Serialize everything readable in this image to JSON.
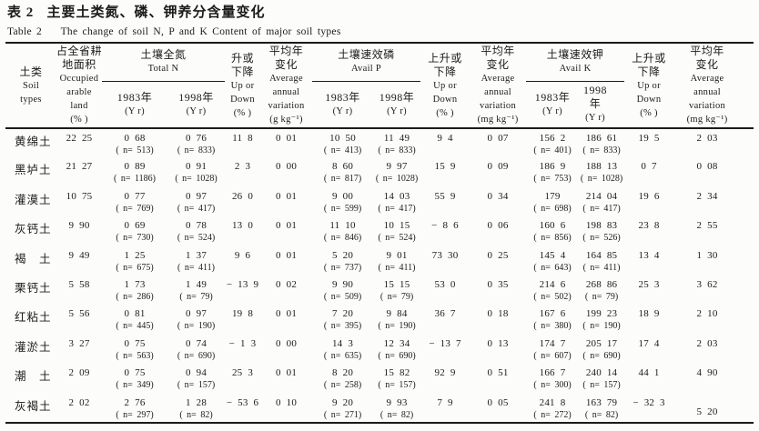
{
  "page": {
    "title_zh": "表 2   主要土类氮、磷、钾养分含量变化",
    "title_en": "Table 2    The change of soil N, P and K Content of major soil types"
  },
  "colors": {
    "background": "#fcfcfa",
    "text": "#1b1b1b",
    "rule": "#1b1b1b"
  },
  "header": {
    "soil": [
      "土类",
      "Soil",
      "types"
    ],
    "occupied": [
      "占全省耕",
      "地面积",
      "Occupied",
      "arable",
      "land",
      "(% )"
    ],
    "group_n": [
      "土壤全氮",
      "Total N"
    ],
    "group_p": [
      "土壤速效磷",
      "Avail P"
    ],
    "group_k": [
      "土壤速效钾",
      "Avail K"
    ],
    "year_1983": [
      "1983年",
      "(Y r)"
    ],
    "year_1998": [
      "1998年",
      "(Y r)"
    ],
    "updown_n": [
      "升或",
      "下降",
      "Up or",
      "Down",
      "(% )"
    ],
    "updown": [
      "上升或",
      "下降",
      "Up or",
      "Down",
      "(% )"
    ],
    "avg_g": [
      "平均年",
      "变化",
      "Average",
      "annual",
      "variation",
      "(g kg⁻¹)"
    ],
    "avg_mg": [
      "平均年",
      "变化",
      "Average",
      "annual",
      "variation",
      "(mg kg⁻¹)"
    ]
  },
  "rows": [
    {
      "name": "黄绵土",
      "occupied": "22 25",
      "n83": "0 68",
      "n83n": "( n= 513)",
      "n98": "0 76",
      "n98n": "( n= 833)",
      "nud": "11 8",
      "navg": "0 01",
      "p83": "10 50",
      "p83n": "( n= 413)",
      "p98": "11 49",
      "p98n": "( n= 833)",
      "pud": "9 4",
      "pavg": "0 07",
      "k83": "156 2",
      "k83n": "( n= 401)",
      "k98": "186 61",
      "k98n": "( n= 833)",
      "kud": "19 5",
      "kavg": "2 03"
    },
    {
      "name": "黑垆土",
      "occupied": "21 27",
      "n83": "0 89",
      "n83n": "( n= 1186)",
      "n98": "0 91",
      "n98n": "( n= 1028)",
      "nud": "2 3",
      "navg": "0 00",
      "p83": "8 60",
      "p83n": "( n= 817)",
      "p98": "9 97",
      "p98n": "( n= 1028)",
      "pud": "15 9",
      "pavg": "0 09",
      "k83": "186 9",
      "k83n": "( n= 753)",
      "k98": "188 13",
      "k98n": "( n= 1028)",
      "kud": "0 7",
      "kavg": "0 08"
    },
    {
      "name": "灌漠土",
      "occupied": "10 75",
      "n83": "0 77",
      "n83n": "( n= 769)",
      "n98": "0 97",
      "n98n": "( n= 417)",
      "nud": "26 0",
      "navg": "0 01",
      "p83": "9 00",
      "p83n": "( n= 599)",
      "p98": "14 03",
      "p98n": "( n= 417)",
      "pud": "55 9",
      "pavg": "0 34",
      "k83": "179",
      "k83n": "( n= 698)",
      "k98": "214 04",
      "k98n": "( n= 417)",
      "kud": "19 6",
      "kavg": "2 34"
    },
    {
      "name": "灰钙土",
      "occupied": "9 90",
      "n83": "0 69",
      "n83n": "( n= 730)",
      "n98": "0 78",
      "n98n": "( n= 524)",
      "nud": "13 0",
      "navg": "0 01",
      "p83": "11 10",
      "p83n": "( n= 846)",
      "p98": "10 15",
      "p98n": "( n= 524)",
      "pud": "− 8 6",
      "pavg": "0 06",
      "k83": "160 6",
      "k83n": "( n= 856)",
      "k98": "198 83",
      "k98n": "( n= 526)",
      "kud": "23 8",
      "kavg": "2 55"
    },
    {
      "name": "褐　土",
      "occupied": "9 49",
      "n83": "1 25",
      "n83n": "( n= 675)",
      "n98": "1 37",
      "n98n": "( n= 411)",
      "nud": "9 6",
      "navg": "0 01",
      "p83": "5 20",
      "p83n": "( n= 737)",
      "p98": "9 01",
      "p98n": "( n= 411)",
      "pud": "73 30",
      "pavg": "0 25",
      "k83": "145 4",
      "k83n": "( n= 643)",
      "k98": "164 85",
      "k98n": "( n= 411)",
      "kud": "13 4",
      "kavg": "1 30"
    },
    {
      "name": "栗钙土",
      "occupied": "5 58",
      "n83": "1 73",
      "n83n": "( n= 286)",
      "n98": "1 49",
      "n98n": "( n= 79)",
      "nud": "− 13 9",
      "navg": "0 02",
      "p83": "9 90",
      "p83n": "( n= 509)",
      "p98": "15 15",
      "p98n": "( n= 79)",
      "pud": "53 0",
      "pavg": "0 35",
      "k83": "214 6",
      "k83n": "( n= 502)",
      "k98": "268 86",
      "k98n": "( n= 79)",
      "kud": "25 3",
      "kavg": "3 62"
    },
    {
      "name": "红粘土",
      "occupied": "5 56",
      "n83": "0 81",
      "n83n": "( n= 445)",
      "n98": "0 97",
      "n98n": "( n= 190)",
      "nud": "19 8",
      "navg": "0 01",
      "p83": "7 20",
      "p83n": "( n= 395)",
      "p98": "9 84",
      "p98n": "( n= 190)",
      "pud": "36 7",
      "pavg": "0 18",
      "k83": "167 6",
      "k83n": "( n= 380)",
      "k98": "199 23",
      "k98n": "( n= 190)",
      "kud": "18 9",
      "kavg": "2 10"
    },
    {
      "name": "灌淤土",
      "occupied": "3 27",
      "n83": "0 75",
      "n83n": "( n= 563)",
      "n98": "0 74",
      "n98n": "( n= 690)",
      "nud": "− 1 3",
      "navg": "0 00",
      "p83": "14 3",
      "p83n": "( n= 635)",
      "p98": "12 34",
      "p98n": "( n= 690)",
      "pud": "− 13 7",
      "pavg": "0 13",
      "k83": "174 7",
      "k83n": "( n= 607)",
      "k98": "205 17",
      "k98n": "( n= 690)",
      "kud": "17 4",
      "kavg": "2 03"
    },
    {
      "name": "潮　土",
      "occupied": "2 09",
      "n83": "0 75",
      "n83n": "( n= 349)",
      "n98": "0 94",
      "n98n": "( n= 157)",
      "nud": "25 3",
      "navg": "0 01",
      "p83": "8 20",
      "p83n": "( n= 258)",
      "p98": "15 82",
      "p98n": "( n= 157)",
      "pud": "92 9",
      "pavg": "0 51",
      "k83": "166 7",
      "k83n": "( n= 300)",
      "k98": "240 14",
      "k98n": "( n= 157)",
      "kud": "44 1",
      "kavg": "4 90"
    },
    {
      "name": "灰褐土",
      "occupied": "2 02",
      "n83": "2 76",
      "n83n": "( n= 297)",
      "n98": "1 28",
      "n98n": "( n= 82)",
      "nud": "− 53 6",
      "navg": "0 10",
      "p83": "9 20",
      "p83n": "( n= 271)",
      "p98": "9 93",
      "p98n": "( n= 82)",
      "pud": "7 9",
      "pavg": "0 05",
      "k83": "241 8",
      "k83n": "( n= 272)",
      "k98": "163 79",
      "k98n": "( n= 82)",
      "kud": "− 32 3",
      "kavg": "5 20"
    }
  ]
}
